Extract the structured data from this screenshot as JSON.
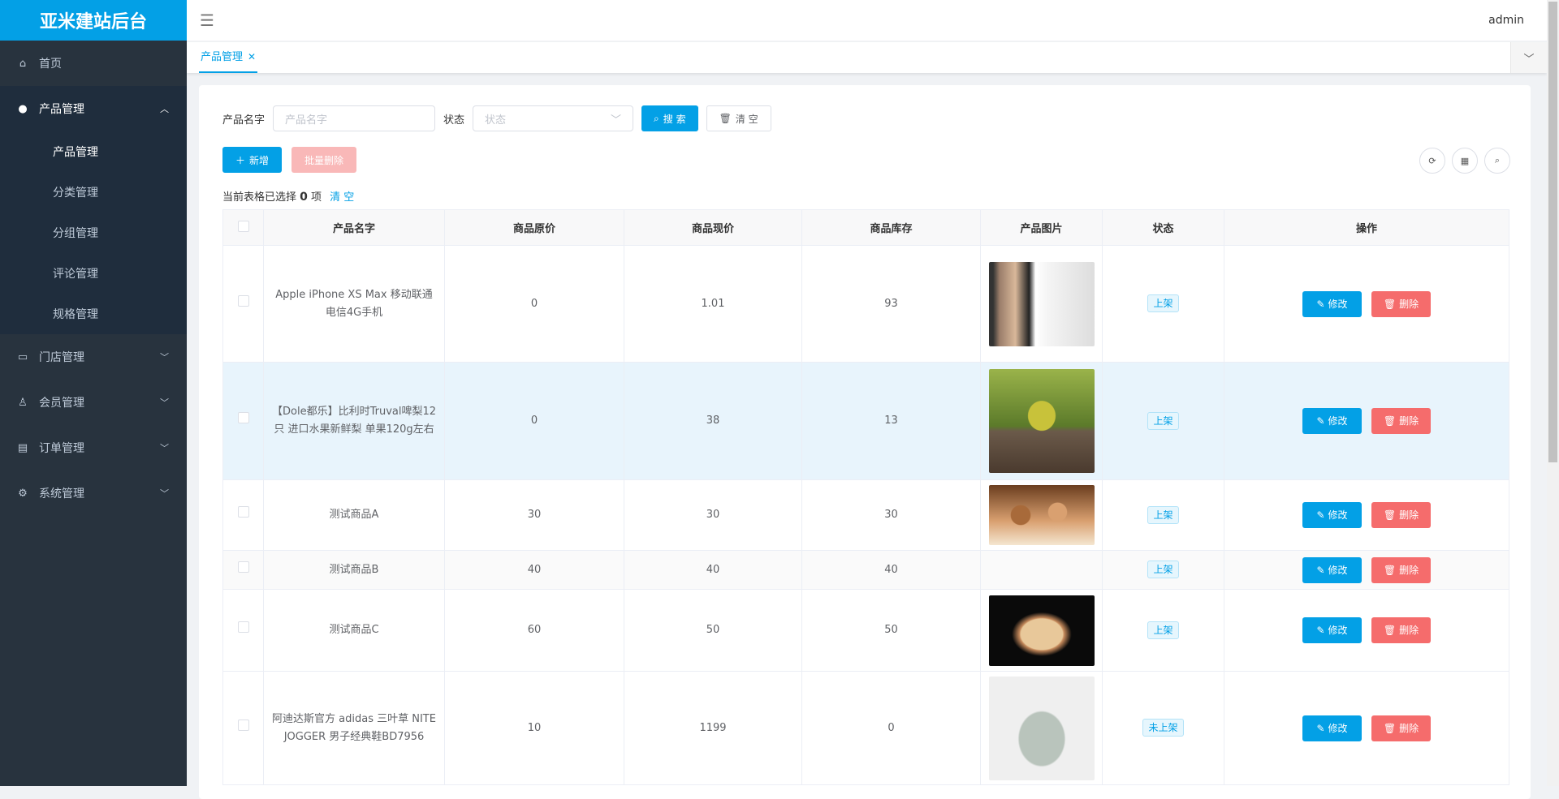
{
  "app": {
    "title": "亚米建站后台",
    "user": "admin"
  },
  "sidebar": {
    "items": [
      {
        "label": "首页",
        "icon": "home-icon"
      },
      {
        "label": "产品管理",
        "icon": "user-icon",
        "open": true,
        "children": [
          "产品管理",
          "分类管理",
          "分组管理",
          "评论管理",
          "规格管理"
        ]
      },
      {
        "label": "门店管理",
        "icon": "store-icon"
      },
      {
        "label": "会员管理",
        "icon": "member-icon"
      },
      {
        "label": "订单管理",
        "icon": "order-icon"
      },
      {
        "label": "系统管理",
        "icon": "gear-icon"
      }
    ]
  },
  "tabs": [
    {
      "label": "产品管理",
      "active": true
    }
  ],
  "search": {
    "name_label": "产品名字",
    "name_placeholder": "产品名字",
    "status_label": "状态",
    "status_placeholder": "状态",
    "search_button": "搜 索",
    "clear_button": "清 空"
  },
  "actions": {
    "add": "新增",
    "batch_delete": "批量删除"
  },
  "selection": {
    "prefix": "当前表格已选择",
    "count": "0",
    "suffix": "项",
    "clear": "清 空"
  },
  "table": {
    "headers": [
      "产品名字",
      "商品原价",
      "商品现价",
      "商品库存",
      "产品图片",
      "状态",
      "操作"
    ],
    "edit_label": "修改",
    "delete_label": "删除",
    "rows": [
      {
        "name": "Apple iPhone XS Max 移动联通电信4G手机",
        "orig": "0",
        "price": "1.01",
        "stock": "93",
        "image": "iphone",
        "status": "上架"
      },
      {
        "name": "【Dole都乐】比利时Truval啤梨12只 进口水果新鲜梨 单果120g左右",
        "orig": "0",
        "price": "38",
        "stock": "13",
        "image": "pear",
        "status": "上架"
      },
      {
        "name": "测试商品A",
        "orig": "30",
        "price": "30",
        "stock": "30",
        "image": "donuts",
        "status": "上架"
      },
      {
        "name": "测试商品B",
        "orig": "40",
        "price": "40",
        "stock": "40",
        "image": "",
        "status": "上架"
      },
      {
        "name": "测试商品C",
        "orig": "60",
        "price": "50",
        "stock": "50",
        "image": "cake",
        "status": "上架"
      },
      {
        "name": "阿迪达斯官方 adidas 三叶草 NITE JOGGER 男子经典鞋BD7956",
        "orig": "10",
        "price": "1199",
        "stock": "0",
        "image": "shoe",
        "status": "未上架"
      }
    ]
  },
  "colors": {
    "brand": "#03a0e6",
    "danger": "#f56c6c",
    "sidebar": "#28333e"
  }
}
